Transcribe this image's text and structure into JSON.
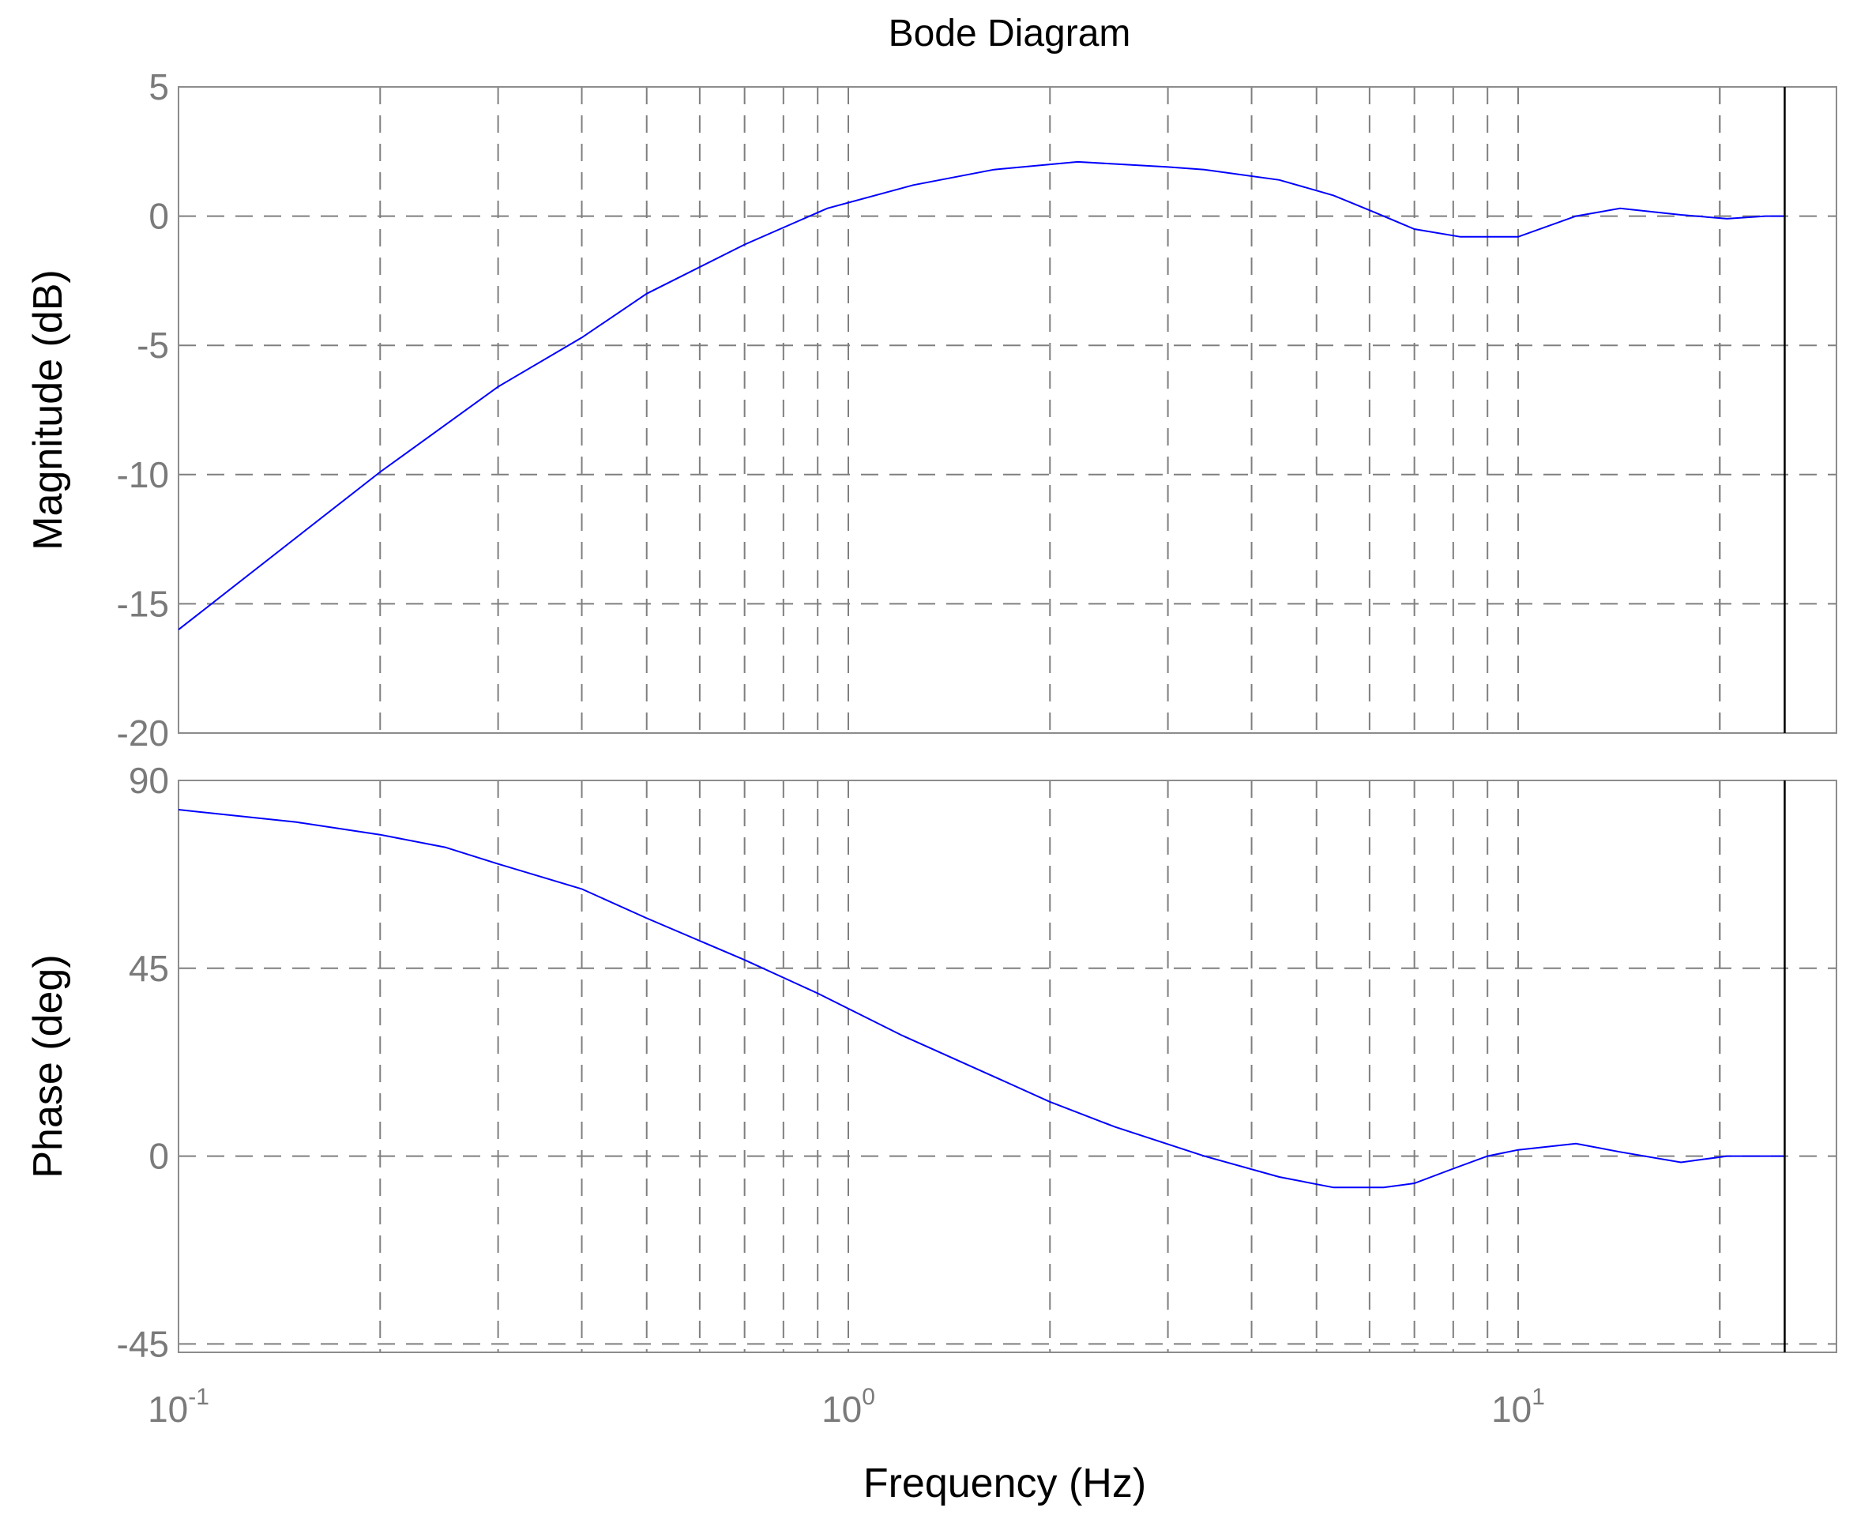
{
  "chart_data": {
    "type": "line",
    "title": "Bode Diagram",
    "xlabel": "Frequency  (Hz)",
    "xscale": "log",
    "xlim": [
      0.1,
      25
    ],
    "x_ticks": [
      {
        "base": "10",
        "exp": "-1",
        "value": 0.1
      },
      {
        "base": "10",
        "exp": "0",
        "value": 1
      },
      {
        "base": "10",
        "exp": "1",
        "value": 10
      }
    ],
    "grid": true,
    "cursor_x": 25,
    "panels": [
      {
        "name": "magnitude",
        "ylabel": "Magnitude (dB)",
        "ylim": [
          -20,
          5
        ],
        "yticks": [
          5,
          0,
          -5,
          -10,
          -15,
          -20
        ],
        "ytick_labels": [
          "5",
          "0",
          "-5",
          "-10",
          "-15",
          "-20"
        ],
        "series": [
          {
            "color": "#0000ff",
            "x": [
              0.1,
              0.2,
              0.3,
              0.4,
              0.5,
              0.7,
              0.93,
              1.25,
              1.65,
              2.2,
              3.0,
              3.4,
              4.4,
              5.3,
              6.1,
              7.0,
              8.2,
              10.0,
              12.2,
              14.2,
              17.5,
              20.5,
              23.4,
              25.0
            ],
            "y": [
              -16.0,
              -9.9,
              -6.6,
              -4.7,
              -3.0,
              -1.1,
              0.3,
              1.2,
              1.8,
              2.1,
              1.9,
              1.8,
              1.4,
              0.8,
              0.15,
              -0.5,
              -0.8,
              -0.8,
              0.0,
              0.3,
              0.05,
              -0.1,
              0.0,
              0.0
            ]
          }
        ]
      },
      {
        "name": "phase",
        "ylabel": "Phase (deg)",
        "ylim": [
          -47,
          90
        ],
        "yticks": [
          90,
          45,
          0,
          -45
        ],
        "ytick_labels": [
          "90",
          "45",
          "0",
          "-45"
        ],
        "series": [
          {
            "color": "#0000ff",
            "x": [
              0.1,
              0.15,
              0.2,
              0.25,
              0.3,
              0.4,
              0.5,
              0.7,
              0.9,
              1.2,
              1.6,
              2.0,
              2.5,
              3.4,
              4.4,
              5.3,
              6.3,
              7.0,
              8.0,
              9.0,
              10.0,
              12.2,
              14.2,
              17.5,
              20.5,
              25.0
            ],
            "y": [
              83,
              80,
              77,
              74,
              70,
              64,
              57,
              47,
              39,
              29,
              20,
              13,
              7,
              0,
              -5,
              -7.5,
              -7.5,
              -6.5,
              -3,
              0,
              1.5,
              3,
              1,
              -1.5,
              0,
              0
            ]
          }
        ]
      }
    ]
  }
}
